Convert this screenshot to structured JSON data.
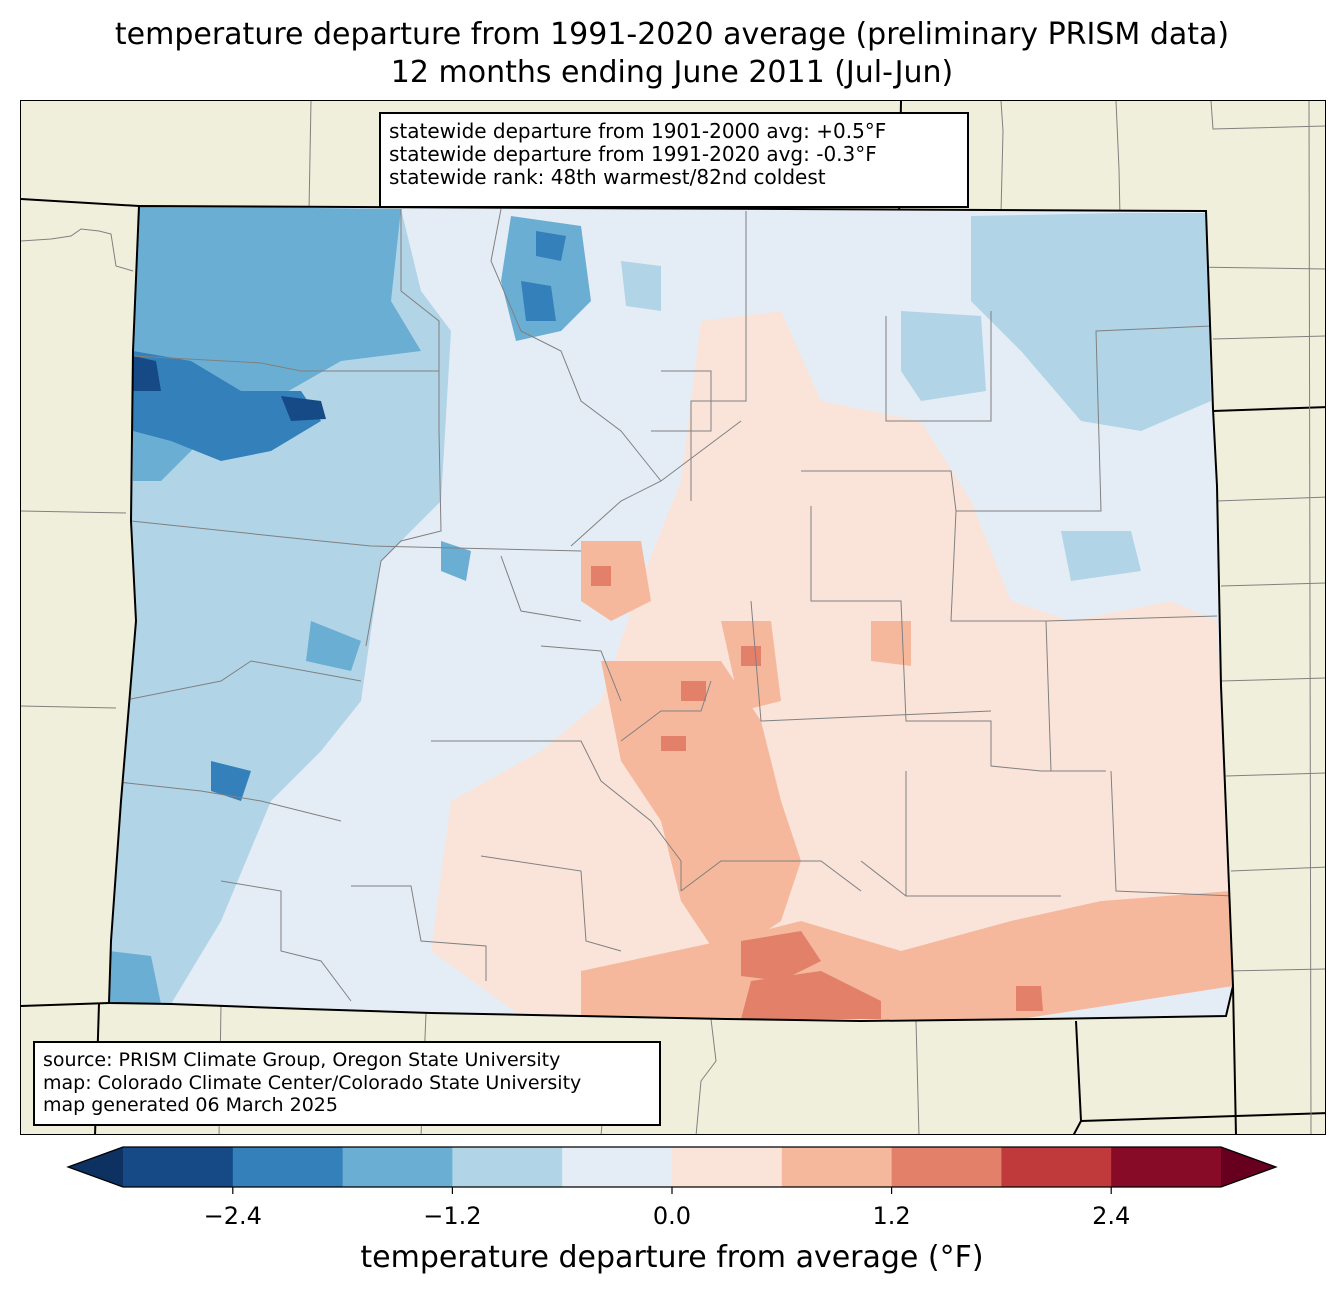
{
  "title": {
    "line1": "temperature departure from 1991-2020 average (preliminary PRISM data)",
    "line2": "12 months ending June 2011 (Jul-Jun)"
  },
  "stats_box": {
    "line1": "statewide departure from 1901-2000 avg: +0.5°F",
    "line2": "statewide departure from 1991-2020 avg: -0.3°F",
    "line3": "statewide rank: 48th warmest/82nd coldest"
  },
  "source_box": {
    "line1": "source: PRISM Climate Group, Oregon State University",
    "line2": "map: Colorado Climate Center/Colorado State University",
    "line3": "map generated 06 March 2025"
  },
  "colorbar": {
    "label": "temperature departure from average (°F)",
    "ticks": [
      "−2.4",
      "−1.2",
      "0.0",
      "1.2",
      "2.4"
    ],
    "bins": [
      {
        "from": -3.0,
        "to": -2.4,
        "color": "#154a86"
      },
      {
        "from": -2.4,
        "to": -1.8,
        "color": "#3380bb"
      },
      {
        "from": -1.8,
        "to": -1.2,
        "color": "#6baed3"
      },
      {
        "from": -1.2,
        "to": -0.6,
        "color": "#b2d4e7"
      },
      {
        "from": -0.6,
        "to": 0.0,
        "color": "#e4edf5"
      },
      {
        "from": 0.0,
        "to": 0.6,
        "color": "#fae4da"
      },
      {
        "from": 0.6,
        "to": 1.2,
        "color": "#f6b89c"
      },
      {
        "from": 1.2,
        "to": 1.8,
        "color": "#e2806a"
      },
      {
        "from": 1.8,
        "to": 2.4,
        "color": "#c03a3c"
      },
      {
        "from": 2.4,
        "to": 3.0,
        "color": "#870a26"
      }
    ],
    "under_color": "#0d3160",
    "over_color": "#67001f",
    "range": [
      -3.0,
      3.0
    ]
  },
  "colors": {
    "land": "#f0efdc",
    "state_border": "#000000",
    "county_border": "#808080"
  }
}
